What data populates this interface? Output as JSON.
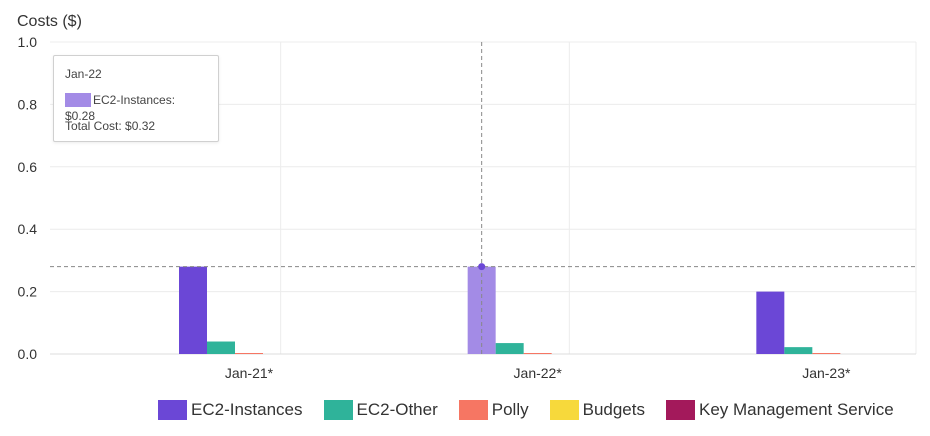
{
  "chart_data": {
    "type": "bar",
    "ylabel": "Costs ($)",
    "ylim": [
      0,
      1.0
    ],
    "yticks": [
      "1.0",
      "0.8",
      "0.6",
      "0.4",
      "0.2",
      "0.0"
    ],
    "yticks_values": [
      1.0,
      0.8,
      0.6,
      0.4,
      0.2,
      0.0
    ],
    "categories": [
      "Jan-21*",
      "Jan-22*",
      "Jan-23*"
    ],
    "series": [
      {
        "name": "EC2-Instances",
        "color": "#6b47d6",
        "values": [
          0.28,
          0.28,
          0.2
        ]
      },
      {
        "name": "EC2-Other",
        "color": "#2fb39a",
        "values": [
          0.04,
          0.035,
          0.022
        ]
      },
      {
        "name": "Polly",
        "color": "#f67663",
        "values": [
          0.003,
          0.003,
          0.002
        ]
      },
      {
        "name": "Budgets",
        "color": "#f7d93b",
        "values": [
          0,
          0,
          0
        ]
      },
      {
        "name": "Key Management Service",
        "color": "#a3195b",
        "values": [
          0,
          0,
          0
        ]
      }
    ],
    "highlight": {
      "category_index": 1,
      "series_index": 0,
      "color": "#a38be6"
    },
    "grid": true,
    "legend_position": "bottom-right"
  },
  "tooltip": {
    "title": "Jan-22",
    "line_label": "EC2-Instances: $0.28",
    "swatch_color": "#a38be6",
    "total": "Total Cost: $0.32"
  }
}
